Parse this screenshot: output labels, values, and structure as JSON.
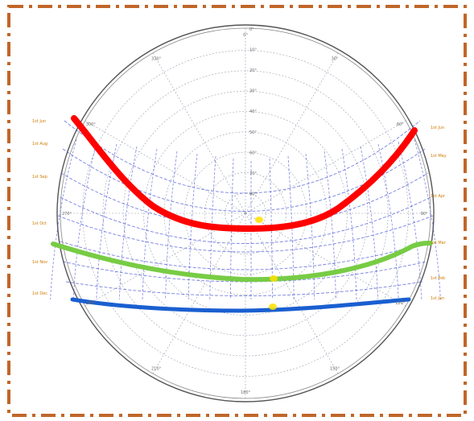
{
  "diagram": {
    "type": "sun-path-stereographic",
    "colors": {
      "frame_border": "#c0662a",
      "grid": "#9aa0b0",
      "sun_path": "#4a55d6",
      "highlight_top": "#ff0000",
      "highlight_middle": "#77cc44",
      "highlight_bottom": "#1a5fd0",
      "marker": "#ffe000",
      "date_label": "#d07a00"
    },
    "azimuth_labels": [
      "0°",
      "30°",
      "60°",
      "90°",
      "120°",
      "150°",
      "180°",
      "210°",
      "240°",
      "270°",
      "300°",
      "330°"
    ],
    "altitude_labels": [
      "0°",
      "10°",
      "20°",
      "30°",
      "40°",
      "50°",
      "60°",
      "70°",
      "80°"
    ],
    "date_labels_left": [
      "1st Jun",
      "1st Aug",
      "1st Sep",
      "1st Oct",
      "1st Nov",
      "1st Dec"
    ],
    "date_labels_right": [
      "1st Jun",
      "1st May",
      "1st Apr",
      "1st Mar",
      "1st Feb",
      "1st Jan"
    ]
  }
}
